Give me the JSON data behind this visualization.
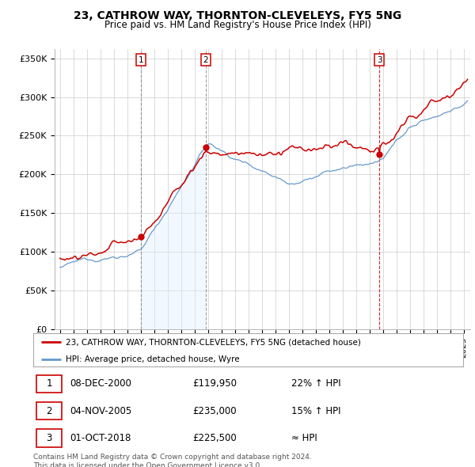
{
  "title": "23, CATHROW WAY, THORNTON-CLEVELEYS, FY5 5NG",
  "subtitle": "Price paid vs. HM Land Registry's House Price Index (HPI)",
  "ylabel_ticks": [
    "£0",
    "£50K",
    "£100K",
    "£150K",
    "£200K",
    "£250K",
    "£300K",
    "£350K"
  ],
  "ytick_values": [
    0,
    50000,
    100000,
    150000,
    200000,
    250000,
    300000,
    350000
  ],
  "ylim": [
    0,
    362000
  ],
  "xlim_start": 1994.6,
  "xlim_end": 2025.5,
  "transaction_dates": [
    2001.0,
    2005.84,
    2018.75
  ],
  "transaction_prices": [
    119950,
    235000,
    225500
  ],
  "transaction_labels": [
    "1",
    "2",
    "3"
  ],
  "vline_styles": [
    "dashed_gray",
    "dashed_gray",
    "dashed_red"
  ],
  "legend_property_label": "23, CATHROW WAY, THORNTON-CLEVELEYS, FY5 5NG (detached house)",
  "legend_hpi_label": "HPI: Average price, detached house, Wyre",
  "table_rows": [
    {
      "num": "1",
      "date": "08-DEC-2000",
      "price": "£119,950",
      "change": "22% ↑ HPI"
    },
    {
      "num": "2",
      "date": "04-NOV-2005",
      "price": "£235,000",
      "change": "15% ↑ HPI"
    },
    {
      "num": "3",
      "date": "01-OCT-2018",
      "price": "£225,500",
      "change": "≈ HPI"
    }
  ],
  "footer": "Contains HM Land Registry data © Crown copyright and database right 2024.\nThis data is licensed under the Open Government Licence v3.0.",
  "property_color": "#cc0000",
  "hpi_color": "#6699cc",
  "hpi_fill_color": "#ddeeff",
  "background_color": "#ffffff",
  "grid_color": "#cccccc"
}
